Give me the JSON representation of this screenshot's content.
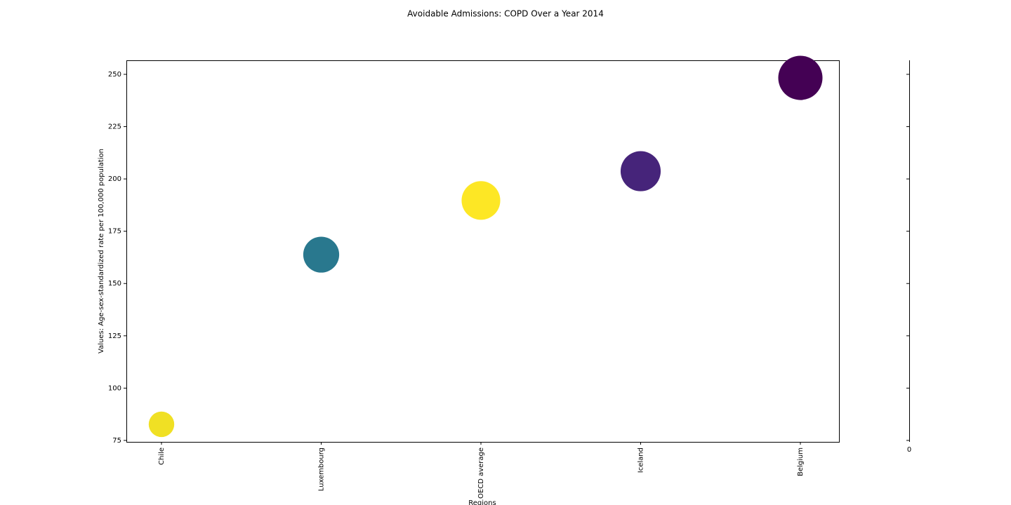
{
  "chart_data": {
    "type": "bubble",
    "title": "Avoidable Admissions: COPD Over a Year 2014",
    "x_label": "Regions",
    "y_label": "Values: Age-sex-standardized rate per 100,000 population",
    "categories": [
      "Chile",
      "Luxembourg",
      "OECD average",
      "Iceland",
      "Belgium"
    ],
    "values": [
      82.7,
      163.8,
      189.7,
      203.7,
      248.3
    ],
    "colors": [
      "#f0e024",
      "#29788e",
      "#fde725",
      "#46247a",
      "#440154"
    ],
    "ylim": [
      74.3,
      256.7
    ],
    "yticks": [
      75,
      100,
      125,
      150,
      175,
      200,
      225,
      250
    ],
    "colorbar": {
      "ticks": [
        0
      ]
    }
  }
}
